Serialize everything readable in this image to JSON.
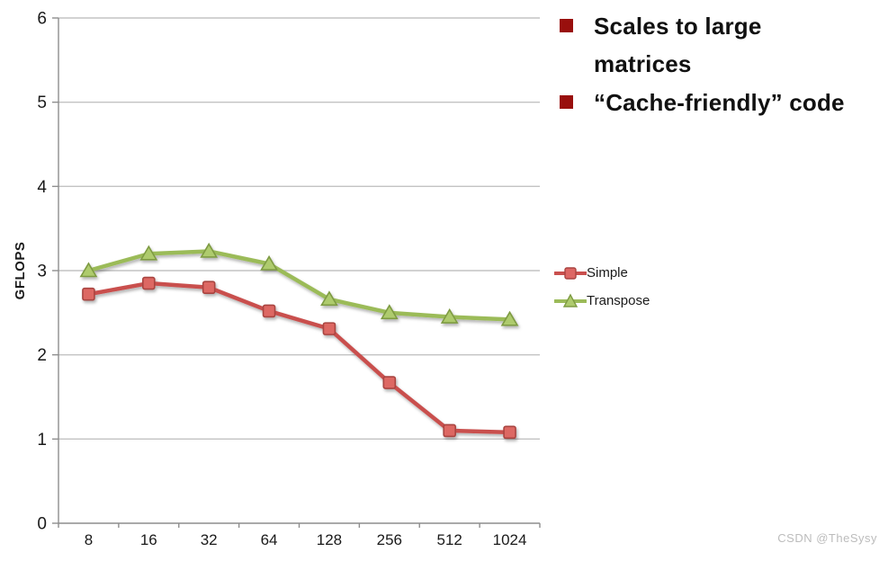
{
  "bullets": [
    {
      "lines": [
        "Scales to large",
        "matrices"
      ]
    },
    {
      "lines": [
        "“Cache-friendly” code"
      ]
    }
  ],
  "bullet_color": "#990f0d",
  "watermark": "CSDN @TheSysy",
  "chart_data": {
    "type": "line",
    "title": "",
    "xlabel": "",
    "ylabel": "GFLOPS",
    "categories": [
      "8",
      "16",
      "32",
      "64",
      "128",
      "256",
      "512",
      "1024"
    ],
    "ylim": [
      0,
      6
    ],
    "yticks": [
      0,
      1,
      2,
      3,
      4,
      5,
      6
    ],
    "grid": true,
    "legend_position": "right",
    "axis_color": "#8e8e8e",
    "gridline_color": "#c3c3c3",
    "tick_label_color": "#1a1a1a",
    "series": [
      {
        "name": "Simple",
        "marker": "square",
        "color": "#c9504e",
        "marker_fill": "#dd6764",
        "marker_stroke": "#a94441",
        "values": [
          2.72,
          2.85,
          2.8,
          2.52,
          2.31,
          1.67,
          1.1,
          1.08
        ]
      },
      {
        "name": "Transpose",
        "marker": "triangle",
        "color": "#9bbb59",
        "marker_fill": "#aecb6d",
        "marker_stroke": "#7e9b43",
        "values": [
          3.0,
          3.2,
          3.23,
          3.08,
          2.66,
          2.5,
          2.45,
          2.42
        ]
      }
    ]
  }
}
